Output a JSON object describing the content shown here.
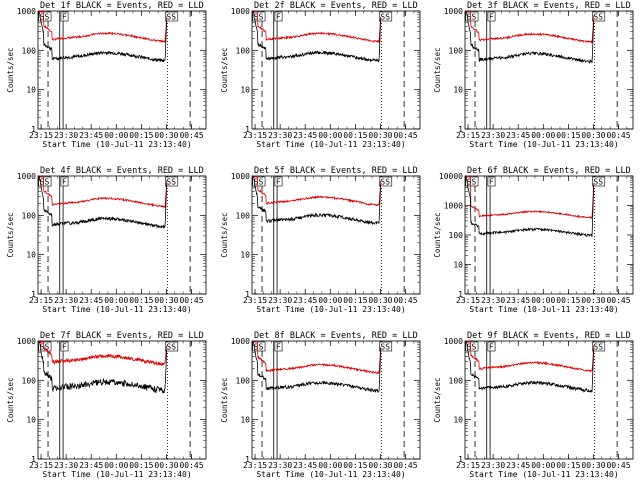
{
  "chart_data": {
    "type": "line",
    "shared": {
      "ylabel": "Counts/sec",
      "xlabel": "Start Time (10-Jul-11 23:13:40)",
      "xticks": [
        "23:15",
        "23:30",
        "23:45",
        "00:00",
        "00:15",
        "00:30",
        "00:45"
      ],
      "xtick_minutes": [
        1.33,
        16.33,
        31.33,
        46.33,
        61.33,
        76.33,
        91.33
      ],
      "xlim_minutes": [
        -0.5,
        100
      ],
      "ylim": [
        1,
        1000
      ],
      "yscale": "log",
      "marker_labels": [
        "SS",
        "F",
        "SS"
      ],
      "marker_minutes": [
        0.5,
        13.8,
        76.3
      ],
      "dashed_lines_minutes": [
        5.5,
        90.5
      ],
      "solid_lines_minutes": [
        12.5,
        14.5
      ],
      "dotted_line_minutes": 77.0,
      "series": [
        {
          "name": "Events",
          "color": "#000000"
        },
        {
          "name": "LLD",
          "color": "#dd0000"
        }
      ]
    },
    "panels": [
      {
        "title": "Det 1f BLACK = Events, RED = LLD",
        "lld_start": 1000,
        "lld_base": 260,
        "ev_base": 95,
        "start_spike": 1000,
        "end_peak": 1000,
        "ylim": [
          1,
          1000
        ]
      },
      {
        "title": "Det 2f BLACK = Events, RED = LLD",
        "lld_start": 1000,
        "lld_base": 260,
        "ev_base": 95,
        "start_spike": 1000,
        "end_peak": 1000,
        "ylim": [
          1,
          1000
        ]
      },
      {
        "title": "Det 3f BLACK = Events, RED = LLD",
        "lld_start": 1000,
        "lld_base": 250,
        "ev_base": 90,
        "start_spike": 1000,
        "end_peak": 1000,
        "ylim": [
          1,
          1000
        ]
      },
      {
        "title": "Det 4f BLACK = Events, RED = LLD",
        "lld_start": 1000,
        "lld_base": 260,
        "ev_base": 90,
        "start_spike": 1000,
        "end_peak": 1000,
        "ylim": [
          1,
          1000
        ]
      },
      {
        "title": "Det 5f BLACK = Events, RED = LLD",
        "lld_start": 1000,
        "lld_base": 280,
        "ev_base": 110,
        "start_spike": 1000,
        "end_peak": 1000,
        "ylim": [
          1,
          1000
        ]
      },
      {
        "title": "Det 6f BLACK = Events, RED = LLD",
        "lld_start": 10000,
        "lld_base": 600,
        "ev_base": 170,
        "start_spike": 10000,
        "end_peak": 10000,
        "ylim": [
          1,
          10000
        ]
      },
      {
        "title": "Det 7f BLACK = Events, RED = LLD",
        "lld_start": 1000,
        "lld_base": 400,
        "ev_base": 100,
        "start_spike": 1000,
        "end_peak": 1000,
        "ylim": [
          1,
          1000
        ]
      },
      {
        "title": "Det 8f BLACK = Events, RED = LLD",
        "lld_start": 1000,
        "lld_base": 240,
        "ev_base": 95,
        "start_spike": 1000,
        "end_peak": 1000,
        "ylim": [
          1,
          1000
        ]
      },
      {
        "title": "Det 9f BLACK = Events, RED = LLD",
        "lld_start": 1000,
        "lld_base": 270,
        "ev_base": 95,
        "start_spike": 1000,
        "end_peak": 1000,
        "ylim": [
          1,
          1000
        ]
      }
    ]
  }
}
